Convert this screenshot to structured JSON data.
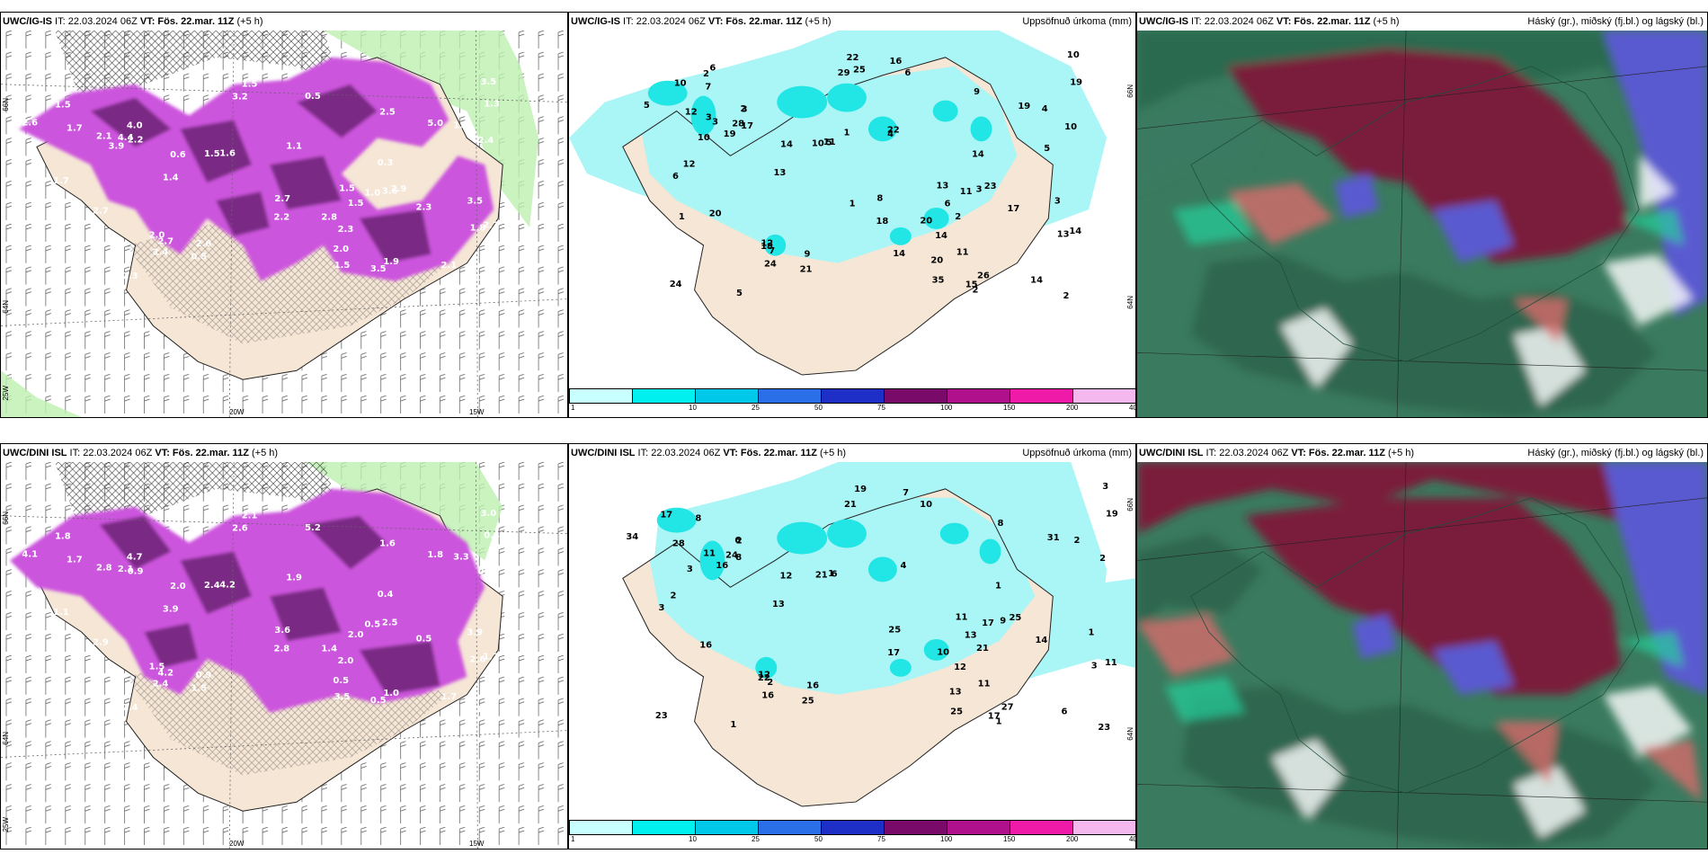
{
  "colors": {
    "land": "#f5e6d6",
    "precip_light": "#aaf5f5",
    "precip_mid": "#22e5e5",
    "snow_purple": "#cc55dd",
    "snow_dark": "#7a2a85",
    "high_cloud": "#7a1a3a",
    "mid_cloud": "#2a8060",
    "low_cloud": "#5a5ad0"
  },
  "top_left": {
    "model": "UWC/IG-IS",
    "init": " IT: 22.03.2024 06Z ",
    "vt_label": "VT:",
    "valid": " Fös. 22.mar. 11Z",
    "lead": " (+5 h)",
    "lat_labels": [
      "66N",
      "64N",
      "25W"
    ],
    "lon_labels": [
      "20W",
      "15W"
    ],
    "values": [
      "0.3",
      "2.3",
      "3.6",
      "1.9",
      "4.4",
      "0.5",
      "2.0",
      "1.5",
      "2.5",
      "3.6",
      "1.1",
      "0.5",
      "1.6",
      "1.7",
      "2.3",
      "3.5",
      "4.0",
      "1.3",
      "1.5",
      "2.6",
      "1.5",
      "2.2",
      "2.3",
      "3.5",
      "2.1",
      "0.6",
      "2.6",
      "2.7",
      "1.7",
      "3.2",
      "1.5",
      "2.2",
      "1.5",
      "2.4",
      "2.8",
      "1.3",
      "1.4",
      "1.0",
      "3.5",
      "5.0",
      "2.7",
      "2.0",
      "0.6",
      "2.2",
      "2.1",
      "2.4",
      "2.7",
      "1.8",
      "3.9",
      "1.5",
      "2.9"
    ]
  },
  "top_mid": {
    "model": "UWC/IG-IS",
    "init": " IT: 22.03.2024 06Z ",
    "vt_label": "VT:",
    "valid": " Fös. 22.mar. 11Z",
    "lead": " (+5 h)",
    "title": "Uppsöfnuð úrkoma (mm)",
    "lat_labels": [
      "66N",
      "64N"
    ],
    "values": [
      "14",
      "14",
      "24",
      "26",
      "28",
      "21",
      "20",
      "10",
      "9",
      "3",
      "4",
      "6",
      "5",
      "6",
      "5",
      "3",
      "2",
      "4",
      "6",
      "9",
      "10",
      "14",
      "17",
      "10",
      "3",
      "2",
      "5",
      "8",
      "12",
      "29",
      "22",
      "18",
      "35",
      "24",
      "20",
      "19",
      "13",
      "11",
      "15",
      "19",
      "20",
      "12",
      "14",
      "17",
      "14",
      "10",
      "7",
      "13",
      "19",
      "13",
      "23",
      "18",
      "11",
      "2",
      "16",
      "2",
      "12",
      "11",
      "10",
      "3",
      "7",
      "3",
      "1",
      "1",
      "6",
      "2",
      "22",
      "25",
      "14",
      "5",
      "1"
    ],
    "legend": {
      "ticks": [
        "1",
        "10",
        "25",
        "50",
        "75",
        "100",
        "150",
        "200",
        "400",
        ""
      ],
      "colors": [
        "#c8ffff",
        "#00f0f0",
        "#00c8e8",
        "#2a6ee8",
        "#1e2fc8",
        "#7a0a6a",
        "#b0108c",
        "#f01aa8",
        "#f5b8ee"
      ]
    }
  },
  "top_right": {
    "model": "UWC/IG-IS",
    "init": " IT: 22.03.2024 06Z ",
    "vt_label": "VT:",
    "valid": " Fös. 22.mar. 11Z",
    "lead": " (+5 h)",
    "title": "Háský (gr.), miðský (fj.bl.) og lágský (bl.)"
  },
  "bot_left": {
    "model": "UWC/DINI ISL",
    "init": " IT: 22.03.2024 06Z ",
    "vt_label": "VT:",
    "valid": " Fös. 22.mar. 11Z",
    "lead": " (+5 h)",
    "lat_labels": [
      "66N",
      "64N",
      "25W"
    ],
    "lon_labels": [
      "20W",
      "15W"
    ],
    "values": [
      "0.4",
      "2.0",
      "2.3",
      "1.0",
      "2.1",
      "1.5",
      "0.5",
      "2.4",
      "1.6",
      "2.5",
      "1.9",
      "5.2",
      "4.2",
      "1.1",
      "2.4",
      "3.9",
      "4.7",
      "3.3",
      "2.0",
      "0.9",
      "1.8",
      "1.2",
      "0.5",
      "3.0",
      "2.8",
      "1.8",
      "4.1",
      "3.6",
      "1.7",
      "2.6",
      "2.1",
      "2.8",
      "3.5",
      "2.4",
      "1.4",
      "0.4",
      "3.9",
      "0.5",
      "0.5",
      "1.8",
      "2.9",
      "1.5",
      "2.0",
      "0.9",
      "1.7",
      "0.8",
      "4.2",
      "2.6"
    ]
  },
  "bot_mid": {
    "model": "UWC/DINI ISL",
    "init": " IT: 22.03.2024 06Z ",
    "vt_label": "VT:",
    "valid": " Fös. 22.mar. 11Z",
    "lead": " (+5 h)",
    "title": "Uppsöfnuð úrkoma (mm)",
    "lat_labels": [
      "66N",
      "64N"
    ],
    "values": [
      "1",
      "12",
      "23",
      "27",
      "24",
      "25",
      "13",
      "21",
      "8",
      "9",
      "4",
      "10",
      "6",
      "3",
      "1",
      "1",
      "6",
      "2",
      "13",
      "16",
      "17",
      "11",
      "14",
      "3",
      "11",
      "23",
      "34",
      "25",
      "28",
      "21",
      "19",
      "17",
      "25",
      "16",
      "10",
      "19",
      "13",
      "17",
      "17",
      "31",
      "16",
      "12",
      "12",
      "8",
      "6",
      "2",
      "2",
      "3",
      "16",
      "11",
      "25",
      "22",
      "11",
      "21",
      "7",
      "1",
      "2",
      "1",
      "3",
      "2",
      "8"
    ],
    "legend": {
      "ticks": [
        "1",
        "10",
        "25",
        "50",
        "75",
        "100",
        "150",
        "200",
        "400",
        ""
      ],
      "colors": [
        "#c8ffff",
        "#00f0f0",
        "#00c8e8",
        "#2a6ee8",
        "#1e2fc8",
        "#7a0a6a",
        "#b0108c",
        "#f01aa8",
        "#f5b8ee"
      ]
    }
  },
  "bot_right": {
    "model": "UWC/DINI ISL",
    "init": " IT: 22.03.2024 06Z ",
    "vt_label": "VT:",
    "valid": " Fös. 22.mar. 11Z",
    "lead": " (+5 h)",
    "title": "Háský (gr.), miðský (fj.bl.) og lágský (bl.)"
  }
}
